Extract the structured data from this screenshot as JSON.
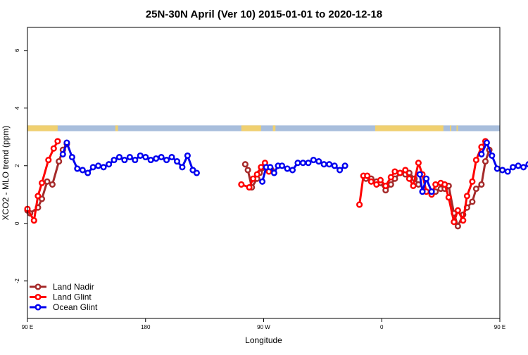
{
  "chart_data": {
    "type": "line",
    "title": "25N-30N April (Ver 10)   2015-01-01 to 2020-12-18",
    "xlabel": "Longitude",
    "ylabel": "XCO2 - MLO trend (ppm)",
    "xlim": [
      90,
      450
    ],
    "ylim": [
      -3.3,
      6.8
    ],
    "x_ticks": [
      {
        "value": 90,
        "label": "90 E"
      },
      {
        "value": 180,
        "label": "180"
      },
      {
        "value": 270,
        "label": "90 W"
      },
      {
        "value": 360,
        "label": "0"
      },
      {
        "value": 450,
        "label": "90 E"
      },
      {
        "value": 540,
        "label": "180"
      }
    ],
    "y_ticks": [
      {
        "value": -2,
        "label": "-2"
      },
      {
        "value": 0,
        "label": "0"
      },
      {
        "value": 2,
        "label": "2"
      },
      {
        "value": 4,
        "label": "4"
      },
      {
        "value": 6,
        "label": "6"
      }
    ],
    "land_ocean_band": {
      "y_range": [
        3.2,
        3.4
      ],
      "land_color": "#f0d070",
      "ocean_color": "#a8bedc",
      "land_segments": [
        [
          90,
          113
        ],
        [
          157,
          159
        ],
        [
          253,
          268
        ],
        [
          277,
          279
        ],
        [
          355,
          407
        ],
        [
          412,
          413
        ],
        [
          417,
          418
        ],
        [
          497,
          513
        ]
      ]
    },
    "legend_position": "bottom-left",
    "grid": false,
    "series": [
      {
        "name": "Land Nadir",
        "color": "#a52a2a",
        "segments": [
          [
            [
              90,
              0.45
            ],
            [
              92,
              0.35
            ],
            [
              98,
              0.55
            ],
            [
              101,
              0.85
            ],
            [
              105,
              1.45
            ],
            [
              109,
              1.35
            ],
            [
              114,
              2.15
            ],
            [
              117,
              2.55
            ],
            [
              120,
              2.75
            ]
          ],
          [
            [
              256,
              2.05
            ],
            [
              258,
              1.85
            ],
            [
              261,
              1.25
            ],
            [
              265,
              1.55
            ],
            [
              267,
              1.75
            ],
            [
              272,
              1.95
            ],
            [
              276,
              1.85
            ]
          ],
          [
            [
              348,
              1.55
            ],
            [
              352,
              1.55
            ],
            [
              356,
              1.45
            ],
            [
              359,
              1.4
            ],
            [
              363,
              1.15
            ],
            [
              367,
              1.35
            ],
            [
              370,
              1.55
            ],
            [
              374,
              1.75
            ],
            [
              378,
              1.7
            ],
            [
              381,
              1.75
            ],
            [
              385,
              1.55
            ],
            [
              388,
              1.35
            ]
          ],
          [
            [
              401,
              1.1
            ],
            [
              405,
              1.2
            ],
            [
              408,
              1.2
            ],
            [
              411,
              1.3
            ],
            [
              415,
              0.35
            ],
            [
              418,
              -0.1
            ],
            [
              422,
              0.3
            ],
            [
              425,
              0.55
            ],
            [
              429,
              0.75
            ],
            [
              432,
              1.2
            ],
            [
              436,
              1.35
            ],
            [
              439,
              2.15
            ],
            [
              442,
              2.55
            ]
          ]
        ]
      },
      {
        "name": "Land Glint",
        "color": "#ff0000",
        "segments": [
          [
            [
              90,
              0.5
            ],
            [
              95,
              0.1
            ],
            [
              98,
              0.95
            ],
            [
              101,
              1.4
            ],
            [
              106,
              2.2
            ],
            [
              110,
              2.6
            ],
            [
              113,
              2.85
            ]
          ],
          [
            [
              253,
              1.35
            ],
            [
              259,
              1.25
            ],
            [
              262,
              1.55
            ],
            [
              265,
              1.7
            ],
            [
              268,
              1.95
            ],
            [
              271,
              2.1
            ],
            [
              274,
              1.8
            ]
          ],
          [
            [
              343,
              0.65
            ],
            [
              346,
              1.65
            ],
            [
              349,
              1.65
            ],
            [
              352,
              1.45
            ],
            [
              356,
              1.35
            ],
            [
              359,
              1.5
            ],
            [
              363,
              1.3
            ],
            [
              367,
              1.6
            ],
            [
              370,
              1.8
            ],
            [
              374,
              1.75
            ],
            [
              378,
              1.85
            ],
            [
              381,
              1.55
            ],
            [
              384,
              1.3
            ],
            [
              388,
              2.1
            ],
            [
              391,
              1.7
            ],
            [
              394,
              1.1
            ],
            [
              398,
              1.0
            ],
            [
              401,
              1.35
            ],
            [
              405,
              1.4
            ],
            [
              408,
              1.35
            ],
            [
              411,
              0.9
            ],
            [
              415,
              0.05
            ],
            [
              418,
              0.45
            ],
            [
              422,
              0.1
            ],
            [
              425,
              0.95
            ],
            [
              429,
              1.45
            ],
            [
              432,
              2.2
            ],
            [
              436,
              2.65
            ],
            [
              439,
              2.85
            ]
          ]
        ]
      },
      {
        "name": "Ocean Glint",
        "color": "#0000ee",
        "segments": [
          [
            [
              117,
              2.4
            ],
            [
              120,
              2.8
            ],
            [
              124,
              2.3
            ],
            [
              128,
              1.9
            ],
            [
              132,
              1.85
            ],
            [
              136,
              1.75
            ],
            [
              140,
              1.95
            ],
            [
              144,
              2.0
            ],
            [
              148,
              1.95
            ],
            [
              152,
              2.05
            ],
            [
              156,
              2.2
            ],
            [
              160,
              2.3
            ],
            [
              164,
              2.2
            ],
            [
              168,
              2.3
            ],
            [
              172,
              2.2
            ],
            [
              176,
              2.35
            ],
            [
              180,
              2.3
            ],
            [
              184,
              2.2
            ],
            [
              188,
              2.25
            ],
            [
              192,
              2.3
            ],
            [
              196,
              2.2
            ],
            [
              200,
              2.3
            ],
            [
              204,
              2.15
            ],
            [
              208,
              1.95
            ],
            [
              212,
              2.35
            ],
            [
              216,
              1.85
            ],
            [
              219,
              1.75
            ]
          ],
          [
            [
              269,
              1.45
            ],
            [
              272,
              1.95
            ],
            [
              275,
              1.95
            ],
            [
              278,
              1.75
            ],
            [
              281,
              2.0
            ],
            [
              284,
              2.0
            ],
            [
              288,
              1.9
            ],
            [
              292,
              1.85
            ],
            [
              296,
              2.1
            ],
            [
              300,
              2.1
            ],
            [
              304,
              2.1
            ],
            [
              308,
              2.2
            ],
            [
              312,
              2.15
            ],
            [
              316,
              2.05
            ],
            [
              320,
              2.05
            ],
            [
              324,
              2.0
            ],
            [
              328,
              1.85
            ],
            [
              332,
              2.0
            ]
          ],
          [
            [
              389,
              1.7
            ],
            [
              391,
              1.1
            ],
            [
              394,
              1.55
            ],
            [
              398,
              1.1
            ]
          ],
          [
            [
              436,
              2.4
            ],
            [
              440,
              2.8
            ],
            [
              444,
              2.35
            ],
            [
              448,
              1.9
            ],
            [
              452,
              1.85
            ],
            [
              456,
              1.8
            ],
            [
              460,
              1.95
            ],
            [
              464,
              2.0
            ],
            [
              468,
              1.95
            ],
            [
              472,
              2.05
            ],
            [
              476,
              2.25
            ],
            [
              480,
              2.3
            ]
          ]
        ]
      }
    ]
  }
}
